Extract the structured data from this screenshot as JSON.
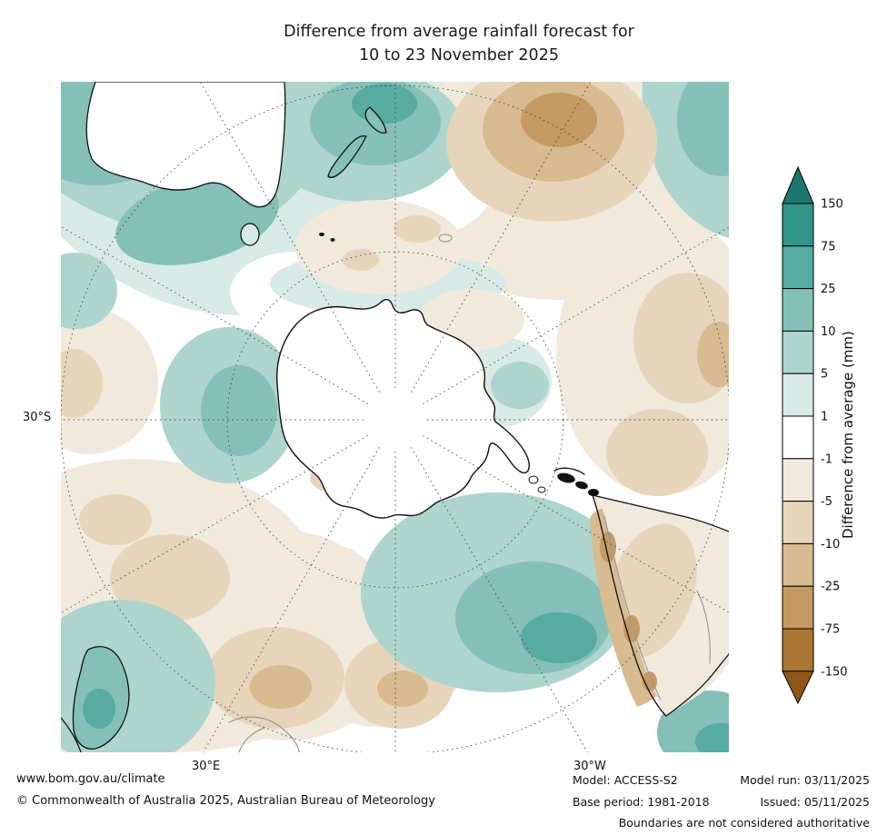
{
  "title": {
    "line1": "Difference from average rainfall forecast for",
    "line2": "10 to 23 November 2025"
  },
  "map": {
    "lat_label": "30°S",
    "lon_label_left": "30°E",
    "lon_label_right": "30°W"
  },
  "colorbar": {
    "label": "Difference from average (mm)",
    "ticks": [
      "150",
      "75",
      "25",
      "10",
      "5",
      "1",
      "-1",
      "-5",
      "-10",
      "-25",
      "-75",
      "-150"
    ],
    "colors": [
      "#1a7a70",
      "#2f948a",
      "#57aba1",
      "#84c0b8",
      "#aed4ce",
      "#d8eae6",
      "#ffffff",
      "#f2e9dd",
      "#e7d5bb",
      "#d8ba90",
      "#c49a62",
      "#ab7634",
      "#8f5715"
    ]
  },
  "footer": {
    "website": "www.bom.gov.au/climate",
    "copyright": "© Commonwealth of Australia 2025, Australian Bureau of Meteorology",
    "model": "Model: ACCESS-S2",
    "base_period": "Base period: 1981-2018",
    "model_run": "Model run: 03/11/2025",
    "issued": "Issued: 05/11/2025",
    "disclaimer": "Boundaries are not considered authoritative"
  }
}
